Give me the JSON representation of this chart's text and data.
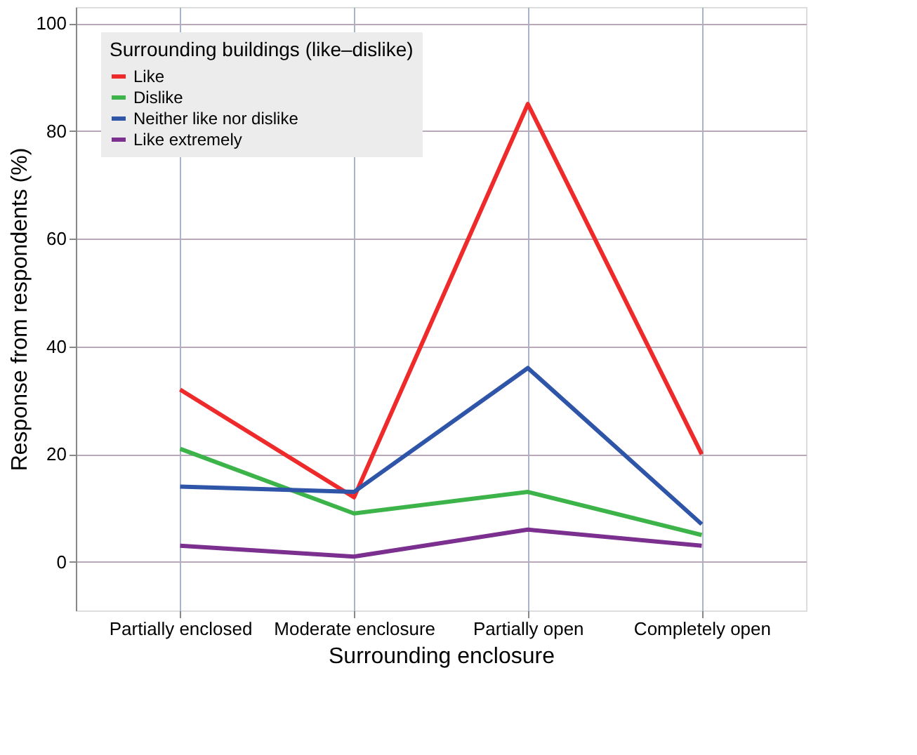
{
  "chart_data": {
    "type": "line",
    "xlabel": "Surrounding enclosure",
    "ylabel": "Response from respondents (%)",
    "legend_title": "Surrounding buildings (like–dislike)",
    "categories": [
      "Partially enclosed",
      "Moderate enclosure",
      "Partially open",
      "Completely open"
    ],
    "series": [
      {
        "name": "Like",
        "color": "#ee2a2a",
        "values": [
          32,
          12,
          85,
          20
        ]
      },
      {
        "name": "Dislike",
        "color": "#3cb44a",
        "values": [
          21,
          9,
          13,
          5
        ]
      },
      {
        "name": "Neither like nor dislike",
        "color": "#2f55a8",
        "values": [
          14,
          13,
          36,
          7
        ]
      },
      {
        "name": "Like extremely",
        "color": "#7b2f8e",
        "values": [
          3,
          1,
          6,
          3
        ]
      }
    ],
    "ylim": [
      -9,
      103
    ],
    "yticks": [
      0,
      20,
      40,
      60,
      80,
      100
    ],
    "grid": true,
    "legend": "top left",
    "marker": "none",
    "line_style": "solid"
  }
}
